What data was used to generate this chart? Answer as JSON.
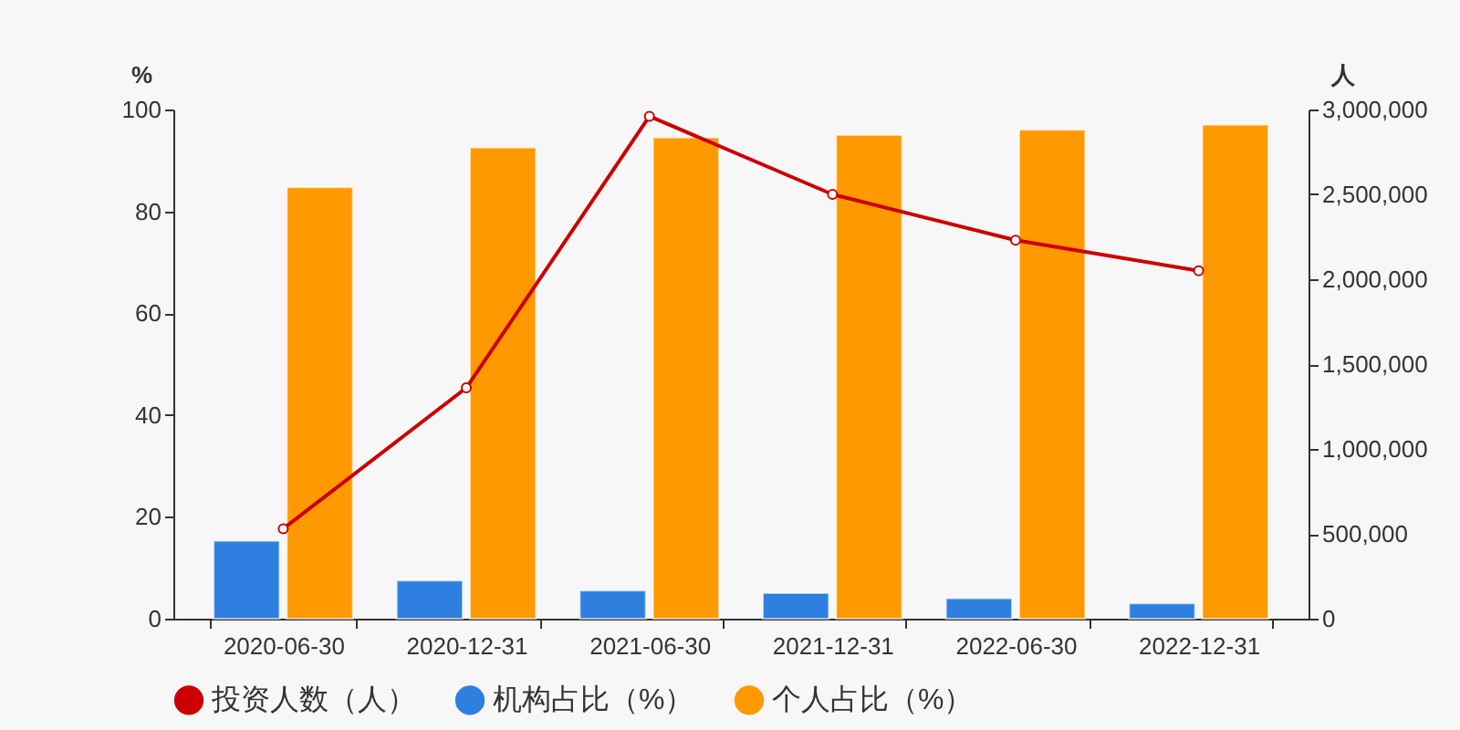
{
  "chart_data": {
    "type": "bar",
    "categories": [
      "2020-06-30",
      "2020-12-31",
      "2021-06-30",
      "2021-12-31",
      "2022-06-30",
      "2022-12-31"
    ],
    "series": [
      {
        "name": "投资人数（人）",
        "type": "line",
        "axis": "y2",
        "color": "#cc0000",
        "values": [
          530000,
          1360000,
          2960000,
          2500000,
          2230000,
          2050000
        ]
      },
      {
        "name": "机构占比（%）",
        "color": "#2e7fe0",
        "values": [
          15.3,
          7.5,
          5.5,
          5.0,
          4.0,
          3.0
        ]
      },
      {
        "name": "个人占比（%）",
        "color": "#ff9900",
        "values": [
          84.7,
          92.5,
          94.5,
          95.0,
          96.0,
          97.0
        ]
      }
    ],
    "ylabel": "%",
    "y2label": "人",
    "ylim": [
      0,
      100
    ],
    "yticks": [
      0,
      20,
      40,
      60,
      80,
      100
    ],
    "y2lim": [
      0,
      3000000
    ],
    "y2ticks": [
      0,
      {
        "value": 500000,
        "label": "500,000"
      },
      {
        "value": 1000000,
        "label": "1,000,000"
      },
      {
        "value": 1500000,
        "label": "1,500,000"
      },
      {
        "value": 2000000,
        "label": "2,000,000"
      },
      {
        "value": 2500000,
        "label": "2,500,000"
      },
      {
        "value": 3000000,
        "label": "3,000,000"
      }
    ],
    "marker": "circle",
    "legend": "bottom",
    "grid": false
  }
}
